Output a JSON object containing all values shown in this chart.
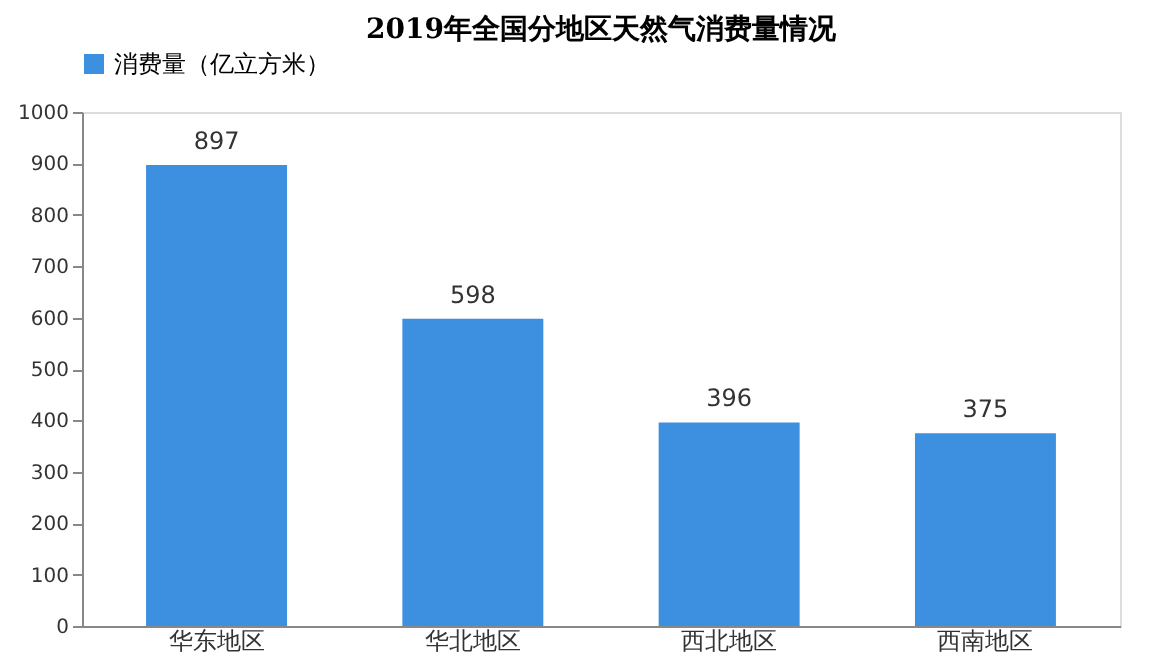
{
  "chart_data": {
    "type": "bar",
    "title": "2019年全国分地区天然气消费量情况",
    "categories": [
      "华东地区",
      "华北地区",
      "西北地区",
      "西南地区"
    ],
    "series": [
      {
        "name": "消费量（亿立方米）",
        "color": "#3d8fe0",
        "values": [
          897,
          598,
          396,
          375
        ]
      }
    ],
    "ylim": [
      0,
      1000
    ],
    "yticks": [
      0,
      100,
      200,
      300,
      400,
      500,
      600,
      700,
      800,
      900,
      1000
    ],
    "grid": false,
    "legend": "top left",
    "data_labels": true
  }
}
